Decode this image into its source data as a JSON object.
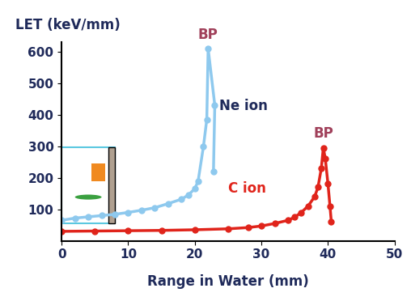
{
  "chart_data": {
    "type": "line",
    "x_label": "Range in Water (mm)",
    "y_label": "LET (keV/mm)",
    "xlim": [
      0,
      50
    ],
    "xticks": [
      0,
      10,
      20,
      30,
      40,
      50
    ],
    "ylim": [
      0,
      630
    ],
    "yticks": [
      100,
      200,
      300,
      400,
      500,
      600
    ],
    "grid": false,
    "series": [
      {
        "name": "Ne ion",
        "color": "#8ec9ee",
        "marker": "o",
        "line_style": "solid",
        "x": [
          0,
          2,
          4,
          6,
          8,
          10,
          12,
          14,
          16,
          18,
          19,
          20,
          20.5,
          21.3,
          21.8,
          22.0,
          23.0,
          22.8
        ],
        "values": [
          65,
          72,
          76,
          80,
          84,
          90,
          97,
          105,
          118,
          132,
          145,
          165,
          190,
          300,
          385,
          610,
          430,
          220
        ]
      },
      {
        "name": "C ion",
        "color": "#e0241b",
        "marker": "o",
        "line_style": "solid",
        "x": [
          0,
          5,
          10,
          15,
          20,
          25,
          28,
          30,
          32,
          34,
          35,
          36,
          37,
          38,
          38.5,
          39,
          39.3,
          39.6,
          40,
          40.3,
          40.5
        ],
        "values": [
          30,
          31,
          32,
          33,
          35,
          38,
          42,
          47,
          55,
          65,
          75,
          90,
          110,
          140,
          170,
          230,
          295,
          260,
          180,
          110,
          60
        ]
      }
    ],
    "annotations": [
      {
        "text": "BP",
        "series": "Ne ion",
        "color": "#a0405a"
      },
      {
        "text": "BP",
        "series": "C ion",
        "color": "#a0405a"
      }
    ],
    "series_label_colors": [
      "#1f2a5a",
      "#e0241b"
    ]
  }
}
